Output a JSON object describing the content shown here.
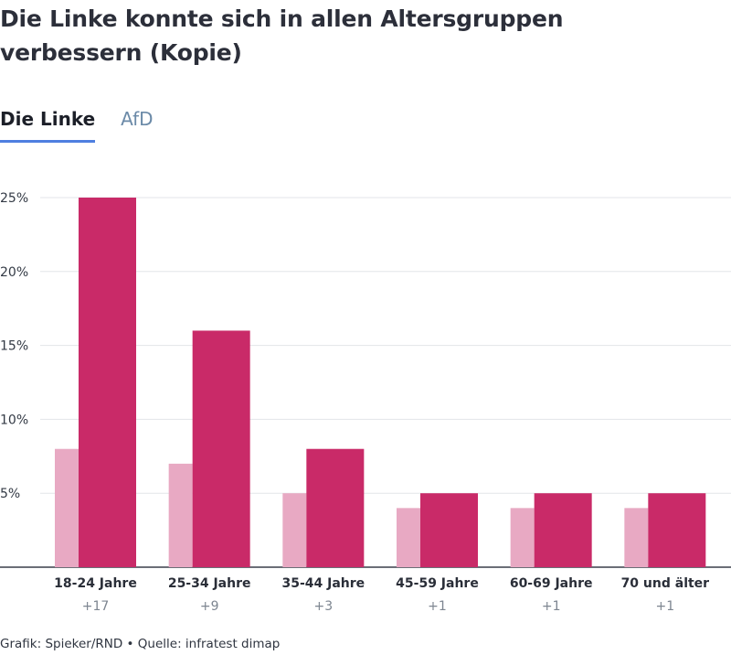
{
  "title": "Die Linke konnte sich in allen Altersgruppen verbessern (Kopie)",
  "tabs": [
    {
      "label": "Die Linke",
      "active": true
    },
    {
      "label": "AfD",
      "active": false
    }
  ],
  "footer": "Grafik: Spieker/RND • Quelle: infratest dimap",
  "colors": {
    "previous": "#e8a9c3",
    "current": "#c92a68",
    "tab_underline": "#4f7fe0"
  },
  "chart_data": {
    "type": "bar",
    "categories": [
      "18-24 Jahre",
      "25-34 Jahre",
      "35-44 Jahre",
      "45-59 Jahre",
      "60-69 Jahre",
      "70 und älter"
    ],
    "differences": [
      "+17",
      "+9",
      "+3",
      "+1",
      "+1",
      "+1"
    ],
    "series": [
      {
        "values": [
          8,
          7,
          5,
          4,
          4,
          4
        ]
      },
      {
        "values": [
          25,
          16,
          8,
          5,
          5,
          5
        ]
      }
    ],
    "yticks": [
      "5%",
      "10%",
      "15%",
      "20%",
      "25%"
    ],
    "ylim": [
      0,
      25
    ],
    "grid": true
  }
}
